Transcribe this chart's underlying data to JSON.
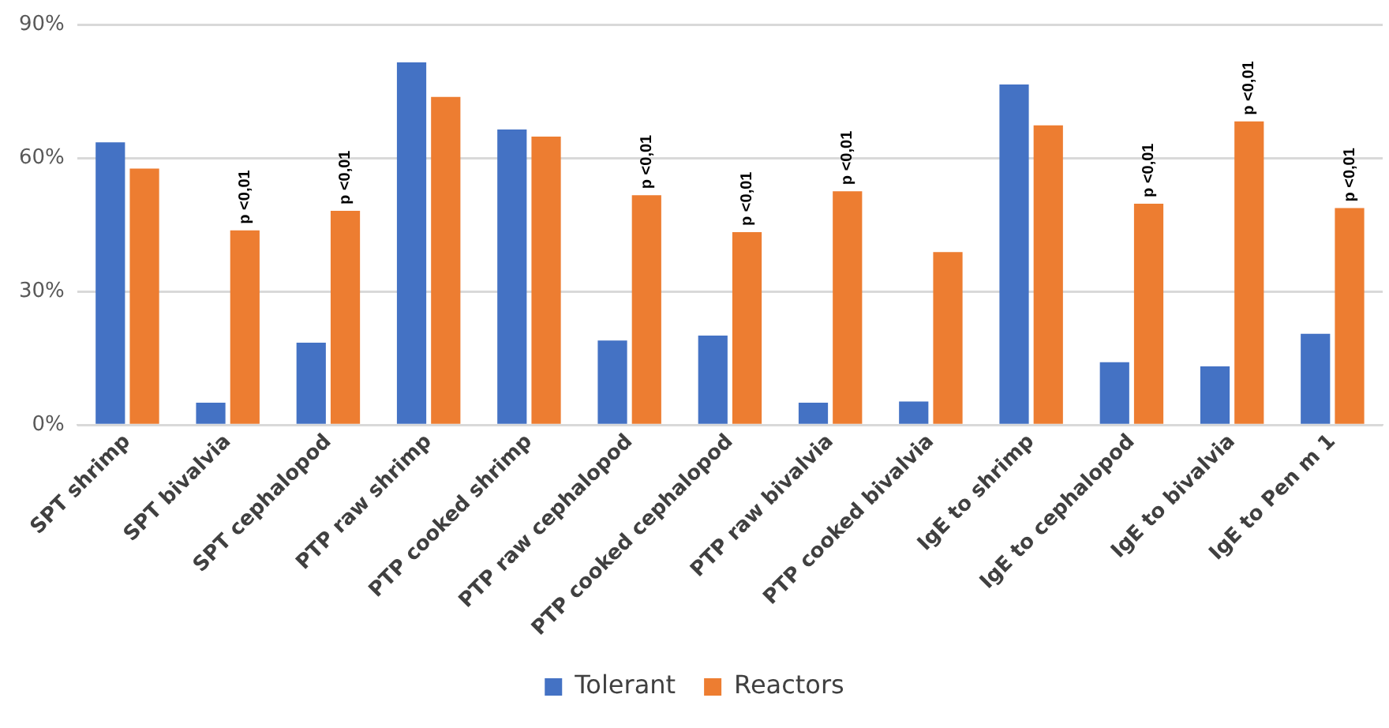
{
  "chart_data": {
    "type": "bar",
    "categories": [
      "SPT shrimp",
      "SPT bivalvia",
      "SPT cephalopod",
      "PTP raw shrimp",
      "PTP cooked shrimp",
      "PTP raw cephalopod",
      "PTP cooked cephalopod",
      "PTP raw bivalvia",
      "PTP cooked bivalvia",
      "IgE to shrimp",
      "IgE to cephalopod",
      "IgE to bivalvia",
      "IgE to Pen m 1"
    ],
    "series": [
      {
        "name": "Tolerant",
        "color": "#4472c4",
        "values": [
          63.6,
          5,
          18.5,
          81.6,
          66.5,
          19,
          20.1,
          5,
          5.3,
          76.6,
          14.1,
          13.2,
          20.5
        ]
      },
      {
        "name": "Reactors",
        "color": "#ed7d31",
        "values": [
          57.7,
          43.8,
          48.2,
          73.8,
          64.9,
          51.7,
          43.4,
          52.6,
          38.9,
          67.4,
          49.8,
          68.3,
          48.8
        ]
      }
    ],
    "ylim": [
      0,
      90
    ],
    "yticks": [
      {
        "value": 0,
        "label": "0%"
      },
      {
        "value": 30,
        "label": "30%"
      },
      {
        "value": 60,
        "label": "60%"
      },
      {
        "value": 90,
        "label": "90%"
      }
    ],
    "grid": "y",
    "legend": "bottom",
    "annotations": [
      {
        "text": "p <0,01",
        "x": "SPT bivalvia",
        "y": 43.8
      },
      {
        "text": "p <0,01",
        "x": "SPT cephalopod",
        "y": 48.2
      },
      {
        "text": "p <0,01",
        "x": "PTP raw cephalopod",
        "y": 51.7
      },
      {
        "text": "p <0,01",
        "x": "PTP cooked cephalopod",
        "y": 43.4
      },
      {
        "text": "p <0,01",
        "x": "PTP raw bivalvia",
        "y": 52.6
      },
      {
        "text": "p <0,01",
        "x": "IgE to cephalopod",
        "y": 49.8
      },
      {
        "text": "p <0,01",
        "x": "IgE to bivalvia",
        "y": 68.3
      },
      {
        "text": "p <0,01",
        "x": "IgE to Pen m 1",
        "y": 48.8
      }
    ]
  }
}
